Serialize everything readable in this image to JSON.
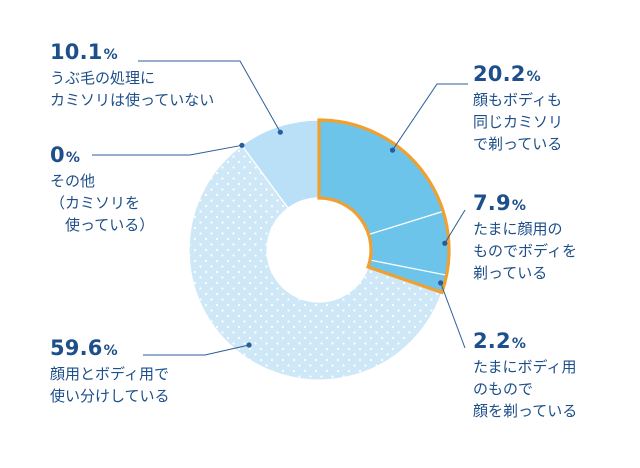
{
  "chart_data": {
    "type": "pie",
    "donut": true,
    "unit": "%",
    "series": [
      {
        "value": 20.2,
        "label": "顔もボディも\n同じカミソリ\nで剃っている",
        "color": "#6dc4ea",
        "highlight": true,
        "pattern": "solid"
      },
      {
        "value": 7.9,
        "label": "たまに顔用の\nものでボディを\n剃っている",
        "color": "#6dc4ea",
        "highlight": true,
        "pattern": "solid"
      },
      {
        "value": 2.2,
        "label": "たまにボディ用\nのもので\n顔を剃っている",
        "color": "#6dc4ea",
        "highlight": true,
        "pattern": "solid"
      },
      {
        "value": 59.6,
        "label": "顔用とボディ用で\n使い分けしている",
        "color": "#cfe8f8",
        "highlight": false,
        "pattern": "dots"
      },
      {
        "value": 0,
        "label": "その他\n（カミソリを\n　使っている）",
        "color": "#cfe8f8",
        "highlight": false,
        "pattern": "solid"
      },
      {
        "value": 10.1,
        "label": "うぶ毛の処理に\nカミソリは使っていない",
        "color": "#b9e0f7",
        "highlight": false,
        "pattern": "solid"
      }
    ],
    "highlight_color": "#f0a030",
    "leader_color": "#2a5c9a"
  }
}
